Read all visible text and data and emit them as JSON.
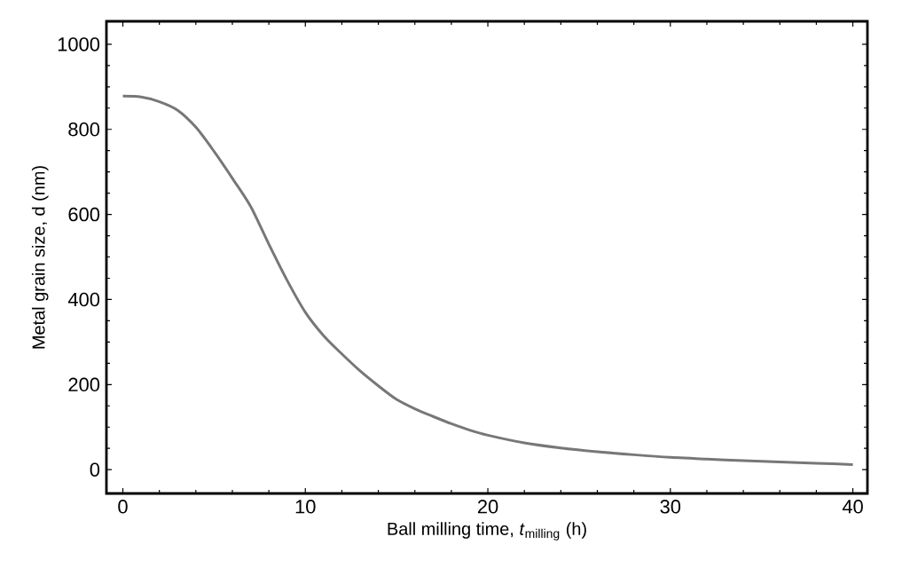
{
  "chart_data": {
    "type": "line",
    "xlabel": "Ball milling time, *t*$_{milling}$ (h)",
    "ylabel": "Metal grain size, d (nm)",
    "x": [
      0,
      1,
      2,
      3,
      4,
      5,
      6,
      7,
      8,
      9,
      10,
      11,
      12,
      13,
      14,
      15,
      16,
      17,
      18,
      19,
      20,
      22,
      24,
      26,
      28,
      30,
      32,
      34,
      36,
      38,
      40
    ],
    "series": [
      {
        "color": "#777777",
        "values": [
          878,
          876,
          865,
          845,
          805,
          748,
          685,
          619,
          530,
          445,
          370,
          315,
          272,
          232,
          197,
          165,
          143,
          125,
          108,
          93,
          81,
          63,
          51,
          42,
          35,
          29,
          25,
          21,
          18,
          15,
          12
        ]
      }
    ],
    "xlim": [
      -0.9,
      40.8
    ],
    "ylim": [
      -56,
      1054
    ],
    "xticks": [
      0,
      10,
      20,
      30,
      40
    ],
    "yticks": [
      0,
      200,
      400,
      600,
      800,
      1000
    ],
    "grid": false,
    "marker": "none",
    "line_style": "solid"
  }
}
